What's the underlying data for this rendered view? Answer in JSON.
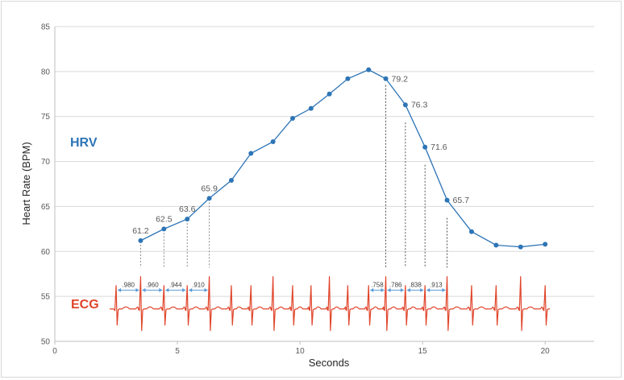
{
  "chart_data": {
    "type": "line",
    "xlabel": "Seconds",
    "ylabel": "Heart Rate (BPM)",
    "xlim": [
      0,
      22
    ],
    "ylim": [
      50,
      85
    ],
    "xticks": [
      "0",
      "5",
      "10",
      "15",
      "20"
    ],
    "yticks": [
      "50",
      "55",
      "60",
      "65",
      "70",
      "75",
      "80",
      "85"
    ],
    "grid": "horizontal",
    "annotations": {
      "hrv": "HRV",
      "ecg": "ECG"
    },
    "series": [
      {
        "color": "#2e75b6",
        "x": [
          3.5,
          4.45,
          5.4,
          6.3,
          7.2,
          8.0,
          8.9,
          9.7,
          10.45,
          11.2,
          11.95,
          12.8,
          13.5,
          14.3,
          15.1,
          16.0,
          17.0,
          18.0,
          19.0,
          20.0
        ],
        "y": [
          61.2,
          62.5,
          63.6,
          65.9,
          67.9,
          70.9,
          72.2,
          74.8,
          75.9,
          77.5,
          79.2,
          80.2,
          79.2,
          76.3,
          71.6,
          65.7,
          62.2,
          60.7,
          60.5,
          60.8
        ]
      }
    ],
    "data_labels": [
      {
        "x": 3.5,
        "y": 61.2,
        "text": "61.2",
        "pos": "above"
      },
      {
        "x": 4.45,
        "y": 62.5,
        "text": "62.5",
        "pos": "above"
      },
      {
        "x": 5.4,
        "y": 63.6,
        "text": "63.6",
        "pos": "above"
      },
      {
        "x": 6.3,
        "y": 65.9,
        "text": "65.9",
        "pos": "above"
      },
      {
        "x": 13.5,
        "y": 79.2,
        "text": "79.2",
        "pos": "right"
      },
      {
        "x": 14.3,
        "y": 76.3,
        "text": "76.3",
        "pos": "right"
      },
      {
        "x": 15.1,
        "y": 71.6,
        "text": "71.6",
        "pos": "right"
      },
      {
        "x": 16.0,
        "y": 65.7,
        "text": "65.7",
        "pos": "right"
      }
    ],
    "ecg": {
      "color": "#e0452b",
      "r_peaks": [
        2.5,
        3.5,
        4.45,
        5.4,
        6.3,
        7.2,
        8.0,
        8.9,
        9.7,
        10.45,
        11.2,
        11.95,
        12.8,
        13.5,
        14.3,
        15.1,
        16.0,
        17.0,
        18.0,
        19.0,
        20.0
      ],
      "rr_intervals": [
        {
          "from": 2.5,
          "to": 3.5,
          "text": ".980"
        },
        {
          "from": 3.5,
          "to": 4.45,
          "text": ".960"
        },
        {
          "from": 4.45,
          "to": 5.4,
          "text": ".944"
        },
        {
          "from": 5.4,
          "to": 6.3,
          "text": ".910"
        },
        {
          "from": 12.8,
          "to": 13.5,
          "text": ".758"
        },
        {
          "from": 13.5,
          "to": 14.3,
          "text": ".786"
        },
        {
          "from": 14.3,
          "to": 15.1,
          "text": ".838"
        },
        {
          "from": 15.1,
          "to": 16.0,
          "text": ".913"
        }
      ]
    }
  }
}
